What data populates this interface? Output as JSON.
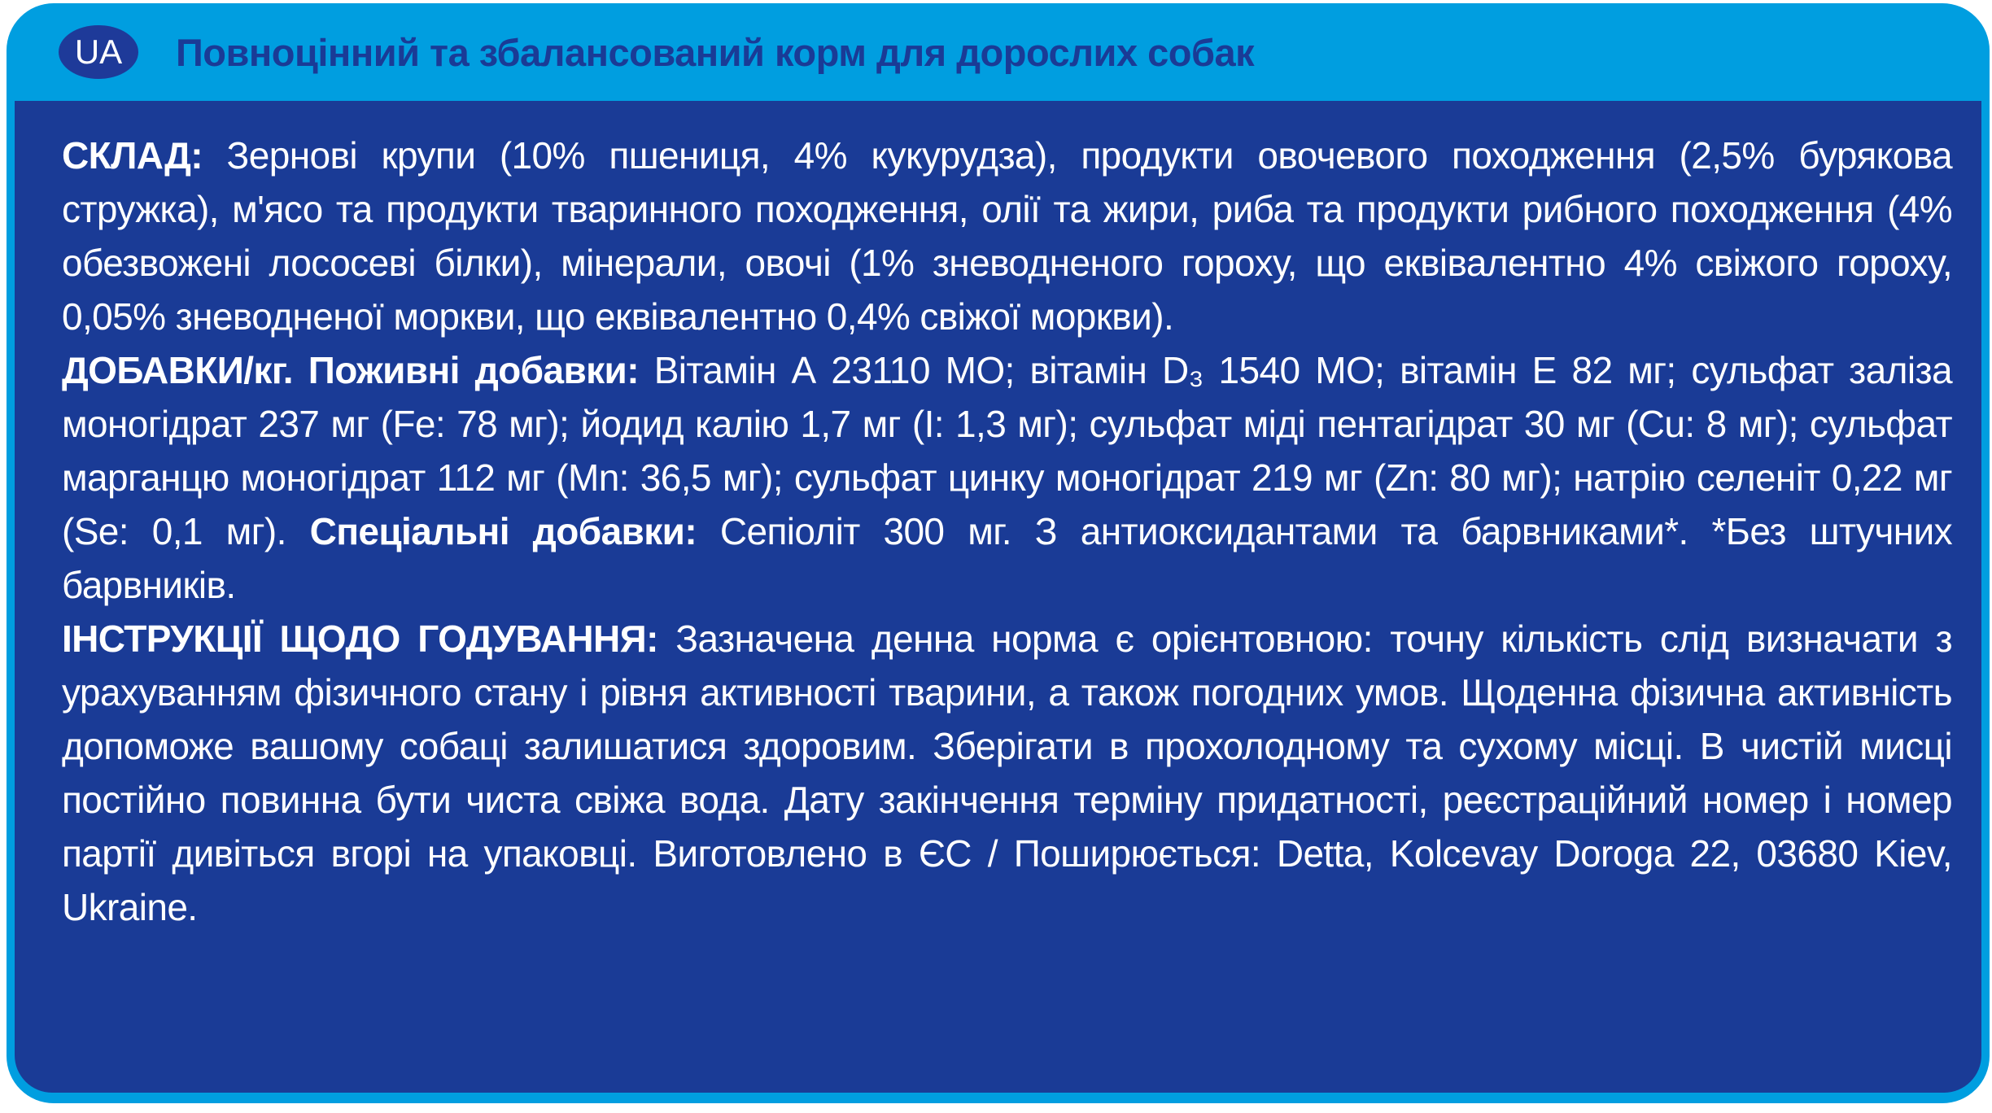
{
  "colors": {
    "frame_and_header_blue": "#009EE0",
    "body_dark_blue": "#1A3B96",
    "badge_dark_blue": "#1E3A99",
    "title_dark_blue": "#1A3B96",
    "body_text": "#ffffff",
    "page_background": "#ffffff"
  },
  "header": {
    "badge": "UA",
    "title": "Повноцінний та збалансований корм для дорослих собак"
  },
  "sections": {
    "composition": {
      "heading": "СКЛАД:",
      "text": " Зернові крупи (10% пшениця, 4% кукурудза), продукти овочевого походження (2,5% бурякова стружка), м'ясо та продукти тваринного походження, олії та жири, риба та продукти рибного походження (4% обезвожені лососеві білки), мінерали, овочі (1% зневодненого гороху, що еквівалентно 4% свіжого гороху, 0,05% зневодненої моркви, що еквівалентно 0,4% свіжої моркви)."
    },
    "additives": {
      "heading": "ДОБАВКИ/кг. Поживні добавки:",
      "text_nutritional": " Вітамін А 23110 МО; вітамін D₃ 1540 МО; вітамін Е 82 мг; сульфат заліза моногідрат 237 мг (Fe: 78 мг); йодид калію 1,7 мг (I: 1,3 мг); сульфат міді пентагідрат 30 мг (Cu: 8 мг); сульфат марганцю моногідрат 112 мг (Mn: 36,5 мг); сульфат цинку моногідрат 219 мг (Zn: 80 мг); натрію селеніт 0,22 мг (Se: 0,1 мг). ",
      "special_heading": "Спеціальні добавки:",
      "text_special": " Сепіоліт 300 мг. З антиоксидантами та барвниками*. *Без штучних барвників."
    },
    "feeding_instructions": {
      "heading": "ІНСТРУКЦІЇ ЩОДО ГОДУВАННЯ:",
      "text": " Зазначена денна норма є орієнтовною: точну кількість слід визначати з урахуванням фізичного стану і рівня активності тварини, а також погодних умов. Щоденна фізична активність допоможе вашому собаці залишатися здоровим. Зберігати в прохолодному та сухому місці. В чистій мисці постійно повинна бути чиста свіжа вода. Дату закінчення терміну придатності, реєстраційний номер і номер партії дивіться вгорі на упаковці. Виготовлено в ЄС / Поширюється: Detta, Kolcevay Doroga 22, 03680 Kiev, Ukraine."
    }
  }
}
